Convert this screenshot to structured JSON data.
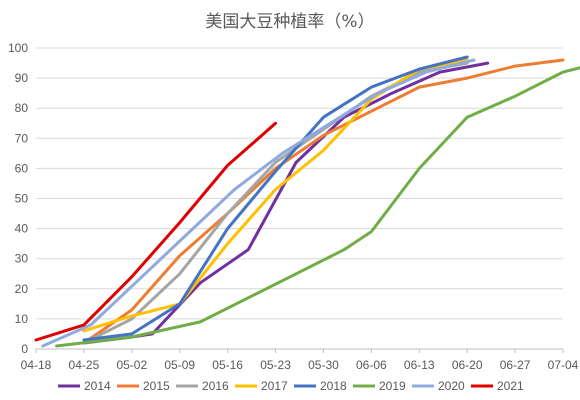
{
  "chart_data": {
    "type": "line",
    "title": "美国大豆种植率（%）",
    "xlabel": "",
    "ylabel": "",
    "x_ticks": [
      "04-18",
      "04-25",
      "05-02",
      "05-09",
      "05-16",
      "05-23",
      "05-30",
      "06-06",
      "06-13",
      "06-20",
      "06-27",
      "07-04"
    ],
    "ylim": [
      0,
      100
    ],
    "y_ticks": [
      0,
      10,
      20,
      30,
      40,
      50,
      60,
      70,
      80,
      90,
      100
    ],
    "grid": true,
    "legend_position": "bottom",
    "series": [
      {
        "name": "2014",
        "color": "#7030a0",
        "points": [
          [
            "04-25",
            2
          ],
          [
            "05-02",
            4
          ],
          [
            "05-05",
            5
          ],
          [
            "05-12",
            22
          ],
          [
            "05-19",
            33
          ],
          [
            "05-26",
            62
          ],
          [
            "06-02",
            77
          ],
          [
            "06-09",
            85
          ],
          [
            "06-16",
            92
          ],
          [
            "06-23",
            95
          ]
        ]
      },
      {
        "name": "2015",
        "color": "#ed7d31",
        "points": [
          [
            "04-25",
            2
          ],
          [
            "05-02",
            13
          ],
          [
            "05-09",
            31
          ],
          [
            "05-16",
            45
          ],
          [
            "05-23",
            60
          ],
          [
            "05-30",
            71
          ],
          [
            "06-06",
            79
          ],
          [
            "06-13",
            87
          ],
          [
            "06-20",
            90
          ],
          [
            "06-27",
            94
          ],
          [
            "07-04",
            96
          ]
        ]
      },
      {
        "name": "2016",
        "color": "#a5a5a5",
        "points": [
          [
            "04-25",
            2
          ],
          [
            "05-02",
            10
          ],
          [
            "05-09",
            25
          ],
          [
            "05-16",
            45
          ],
          [
            "05-23",
            62
          ],
          [
            "05-30",
            73
          ],
          [
            "06-06",
            84
          ],
          [
            "06-13",
            92
          ],
          [
            "06-20",
            95
          ]
        ]
      },
      {
        "name": "2017",
        "color": "#ffc000",
        "points": [
          [
            "04-25",
            6
          ],
          [
            "05-02",
            11
          ],
          [
            "05-09",
            15
          ],
          [
            "05-16",
            35
          ],
          [
            "05-23",
            53
          ],
          [
            "05-30",
            66
          ],
          [
            "06-06",
            83
          ],
          [
            "06-13",
            93
          ],
          [
            "06-20",
            96
          ]
        ]
      },
      {
        "name": "2018",
        "color": "#4472c4",
        "points": [
          [
            "04-25",
            3
          ],
          [
            "05-02",
            5
          ],
          [
            "05-09",
            15
          ],
          [
            "05-16",
            40
          ],
          [
            "05-23",
            59
          ],
          [
            "05-30",
            77
          ],
          [
            "06-06",
            87
          ],
          [
            "06-13",
            93
          ],
          [
            "06-20",
            97
          ]
        ]
      },
      {
        "name": "2019",
        "color": "#70ad47",
        "points": [
          [
            "04-21",
            1
          ],
          [
            "05-02",
            4
          ],
          [
            "05-12",
            9
          ],
          [
            "05-19",
            17
          ],
          [
            "05-26",
            25
          ],
          [
            "06-02",
            33
          ],
          [
            "06-06",
            39
          ],
          [
            "06-13",
            60
          ],
          [
            "06-20",
            77
          ],
          [
            "06-27",
            84
          ],
          [
            "07-04",
            92
          ],
          [
            "07-11",
            96
          ]
        ]
      },
      {
        "name": "2020",
        "color": "#8faadc",
        "points": [
          [
            "04-19",
            1
          ],
          [
            "04-26",
            8
          ],
          [
            "05-03",
            23
          ],
          [
            "05-10",
            38
          ],
          [
            "05-17",
            53
          ],
          [
            "05-24",
            65
          ],
          [
            "05-31",
            75
          ],
          [
            "06-07",
            85
          ],
          [
            "06-14",
            92
          ],
          [
            "06-21",
            96
          ]
        ]
      },
      {
        "name": "2021",
        "color": "#e00000",
        "points": [
          [
            "04-18",
            3
          ],
          [
            "04-25",
            8
          ],
          [
            "05-02",
            24
          ],
          [
            "05-09",
            42
          ],
          [
            "05-16",
            61
          ],
          [
            "05-23",
            75
          ]
        ]
      }
    ]
  }
}
